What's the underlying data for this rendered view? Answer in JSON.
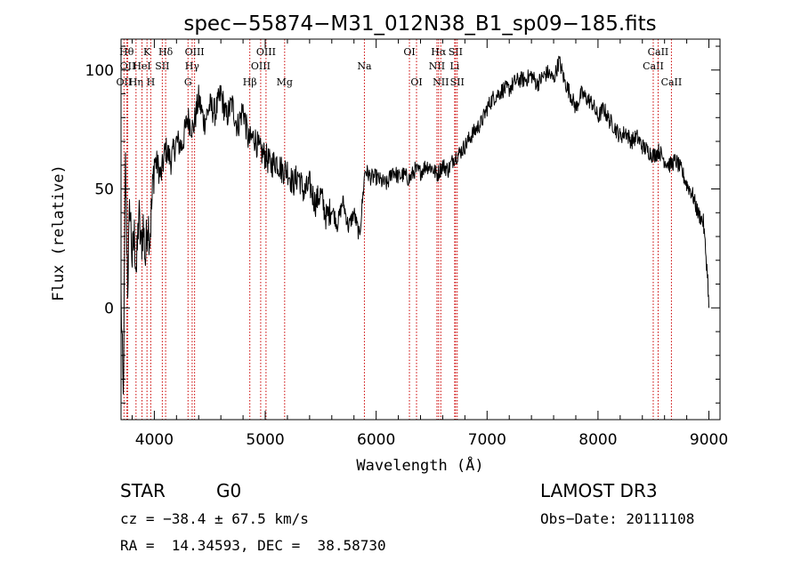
{
  "chart_data": {
    "type": "line",
    "title": "spec−55874−M31_012N38_B1_sp09−185.fits",
    "xlabel": "Wavelength (Å)",
    "ylabel": "Flux (relative)",
    "xlim": [
      3700,
      9100
    ],
    "ylim": [
      -47,
      113
    ],
    "xticks": [
      4000,
      5000,
      6000,
      7000,
      8000,
      9000
    ],
    "xtick_labels": [
      "4000",
      "5000",
      "6000",
      "7000",
      "8000",
      "9000"
    ],
    "yticks": [
      0,
      50,
      100
    ],
    "ytick_labels": [
      "0",
      "50",
      "100"
    ],
    "grid": false,
    "series": [
      {
        "name": "flux",
        "color": "#000000",
        "x": [
          3700,
          3720,
          3740,
          3760,
          3780,
          3800,
          3820,
          3840,
          3860,
          3880,
          3900,
          3920,
          3940,
          3960,
          3980,
          4000,
          4030,
          4060,
          4100,
          4150,
          4200,
          4250,
          4300,
          4350,
          4400,
          4450,
          4500,
          4550,
          4600,
          4650,
          4700,
          4750,
          4800,
          4850,
          4900,
          4950,
          5000,
          5050,
          5100,
          5150,
          5200,
          5250,
          5300,
          5350,
          5400,
          5450,
          5500,
          5550,
          5600,
          5650,
          5700,
          5750,
          5800,
          5850,
          5900,
          5950,
          6000,
          6050,
          6100,
          6150,
          6200,
          6250,
          6300,
          6350,
          6400,
          6450,
          6500,
          6550,
          6600,
          6650,
          6700,
          6750,
          6800,
          6850,
          6900,
          6950,
          7000,
          7050,
          7100,
          7150,
          7200,
          7250,
          7300,
          7350,
          7400,
          7450,
          7500,
          7550,
          7600,
          7650,
          7700,
          7750,
          7800,
          7850,
          7900,
          7950,
          8000,
          8050,
          8100,
          8150,
          8200,
          8250,
          8300,
          8350,
          8400,
          8450,
          8500,
          8550,
          8600,
          8650,
          8700,
          8750,
          8800,
          8850,
          8900,
          8950,
          8990,
          9000
        ],
        "y": [
          5,
          -40,
          60,
          10,
          45,
          20,
          30,
          15,
          40,
          25,
          35,
          20,
          38,
          30,
          45,
          62,
          60,
          55,
          67,
          62,
          70,
          68,
          80,
          75,
          88,
          78,
          85,
          82,
          90,
          80,
          86,
          76,
          84,
          70,
          72,
          66,
          64,
          60,
          62,
          58,
          58,
          52,
          56,
          48,
          52,
          44,
          48,
          38,
          42,
          35,
          45,
          34,
          40,
          30,
          58,
          55,
          55,
          53,
          52,
          58,
          55,
          56,
          54,
          58,
          57,
          60,
          59,
          56,
          60,
          58,
          63,
          65,
          68,
          72,
          75,
          78,
          84,
          88,
          90,
          92,
          92,
          95,
          96,
          96,
          98,
          94,
          97,
          99,
          96,
          104,
          95,
          90,
          84,
          90,
          88,
          86,
          80,
          84,
          79,
          76,
          72,
          74,
          70,
          72,
          68,
          66,
          64,
          66,
          62,
          60,
          62,
          58,
          52,
          48,
          40,
          36,
          12,
          0
        ]
      }
    ],
    "lines": [
      {
        "name": "OII",
        "wave": 3727,
        "row": 3
      },
      {
        "name": "Hθ",
        "wave": 3750,
        "row": 1
      },
      {
        "name": "OII",
        "wave": 3760,
        "row": 2
      },
      {
        "name": "Hη",
        "wave": 3835,
        "row": 3
      },
      {
        "name": "HeI",
        "wave": 3889,
        "row": 2
      },
      {
        "name": "K",
        "wave": 3934,
        "row": 1
      },
      {
        "name": "H",
        "wave": 3968,
        "row": 3
      },
      {
        "name": "SII",
        "wave": 4072,
        "row": 2
      },
      {
        "name": "Hδ",
        "wave": 4102,
        "row": 1
      },
      {
        "name": "G",
        "wave": 4304,
        "row": 3
      },
      {
        "name": "Hγ",
        "wave": 4341,
        "row": 2
      },
      {
        "name": "OIII",
        "wave": 4363,
        "row": 1
      },
      {
        "name": "Hβ",
        "wave": 4861,
        "row": 3
      },
      {
        "name": "OIII",
        "wave": 4959,
        "row": 2
      },
      {
        "name": "OIII",
        "wave": 5007,
        "row": 1
      },
      {
        "name": "Mg",
        "wave": 5175,
        "row": 3
      },
      {
        "name": "Na",
        "wave": 5894,
        "row": 2
      },
      {
        "name": "OI",
        "wave": 6300,
        "row": 1
      },
      {
        "name": "OI",
        "wave": 6364,
        "row": 3
      },
      {
        "name": "NII",
        "wave": 6548,
        "row": 2
      },
      {
        "name": "Hα",
        "wave": 6563,
        "row": 1
      },
      {
        "name": "NII",
        "wave": 6583,
        "row": 3
      },
      {
        "name": "Li",
        "wave": 6708,
        "row": 2
      },
      {
        "name": "SII",
        "wave": 6716,
        "row": 1
      },
      {
        "name": "SII",
        "wave": 6731,
        "row": 3
      },
      {
        "name": "CaII",
        "wave": 8498,
        "row": 2
      },
      {
        "name": "CaII",
        "wave": 8542,
        "row": 1
      },
      {
        "name": "CaII",
        "wave": 8662,
        "row": 3
      }
    ],
    "line_color": "#cc0000"
  },
  "info": {
    "class_label": "STAR",
    "subclass_label": "G0",
    "survey": "LAMOST DR3",
    "velocity": "cz = −38.4 ± 67.5 km/s",
    "obs_date": "Obs−Date: 20111108",
    "coords": "RA =  14.34593, DEC =  38.58730"
  }
}
